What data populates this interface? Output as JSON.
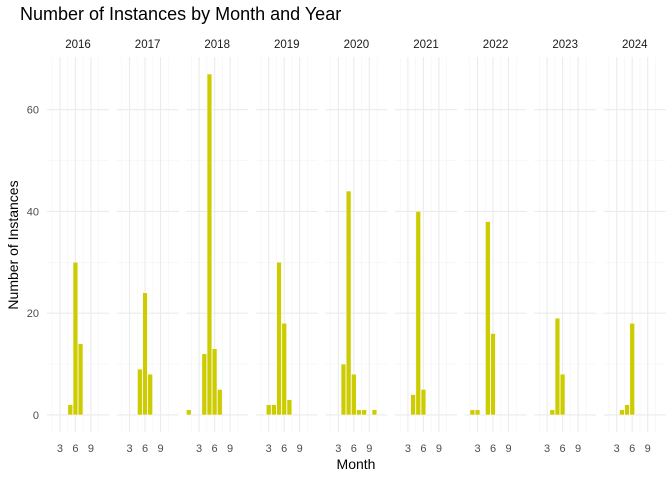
{
  "chart_data": {
    "type": "bar",
    "title": "Number of Instances by Month and Year",
    "xlabel": "Month",
    "ylabel": "Number of Instances",
    "xlim": [
      0.5,
      12.5
    ],
    "ylim": [
      -3.35,
      70.35
    ],
    "x_ticks": [
      3,
      6,
      9
    ],
    "y_ticks": [
      0,
      20,
      40,
      60
    ],
    "bar_color": "#CCCC00",
    "grid": "on",
    "facets": [
      {
        "year": "2016",
        "months": [
          5,
          6,
          7
        ],
        "values": [
          2,
          30,
          14
        ]
      },
      {
        "year": "2017",
        "months": [
          5,
          6,
          7
        ],
        "values": [
          9,
          24,
          8
        ]
      },
      {
        "year": "2018",
        "months": [
          1,
          4,
          5,
          6,
          7
        ],
        "values": [
          1,
          12,
          67,
          13,
          5
        ]
      },
      {
        "year": "2019",
        "months": [
          3,
          4,
          5,
          6,
          7
        ],
        "values": [
          2,
          2,
          30,
          18,
          3
        ]
      },
      {
        "year": "2020",
        "months": [
          4,
          5,
          6,
          7,
          8,
          10
        ],
        "values": [
          10,
          44,
          8,
          1,
          1,
          1
        ]
      },
      {
        "year": "2021",
        "months": [
          4,
          5,
          6
        ],
        "values": [
          4,
          40,
          5
        ]
      },
      {
        "year": "2022",
        "months": [
          2,
          3,
          5,
          6
        ],
        "values": [
          1,
          1,
          38,
          16
        ]
      },
      {
        "year": "2023",
        "months": [
          4,
          5,
          6
        ],
        "values": [
          1,
          19,
          8
        ]
      },
      {
        "year": "2024",
        "months": [
          4,
          5,
          6
        ],
        "values": [
          1,
          2,
          18
        ]
      }
    ]
  }
}
